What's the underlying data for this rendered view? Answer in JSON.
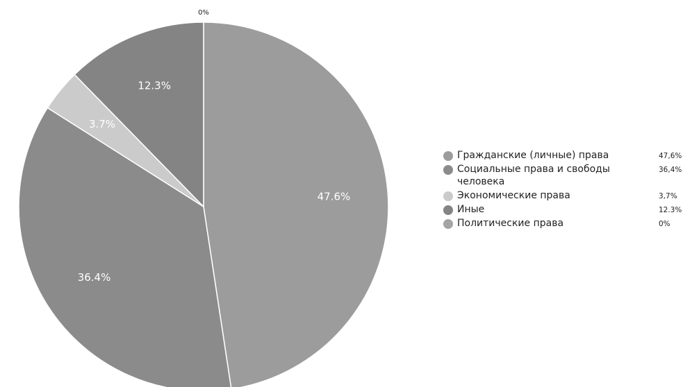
{
  "chart_data": {
    "type": "pie",
    "slices": [
      {
        "name": "Гражданские (личные) права",
        "value": 47.6,
        "label": "47.6%",
        "legend_value": "47,6%",
        "color": "#9c9c9c"
      },
      {
        "name": "Социальные права и свободы человека",
        "value": 36.4,
        "label": "36.4%",
        "legend_value": "36,4%",
        "color": "#8b8b8b"
      },
      {
        "name": "Экономические права",
        "value": 3.7,
        "label": "3.7%",
        "legend_value": "3,7%",
        "color": "#cbcbcb"
      },
      {
        "name": "Иные",
        "value": 12.3,
        "label": "12.3%",
        "legend_value": "12.3%",
        "color": "#848484"
      },
      {
        "name": "Политические права",
        "value": 0,
        "label": "0%",
        "legend_value": "0%",
        "color": "#a4a4a4"
      }
    ],
    "legend_position": "right"
  }
}
